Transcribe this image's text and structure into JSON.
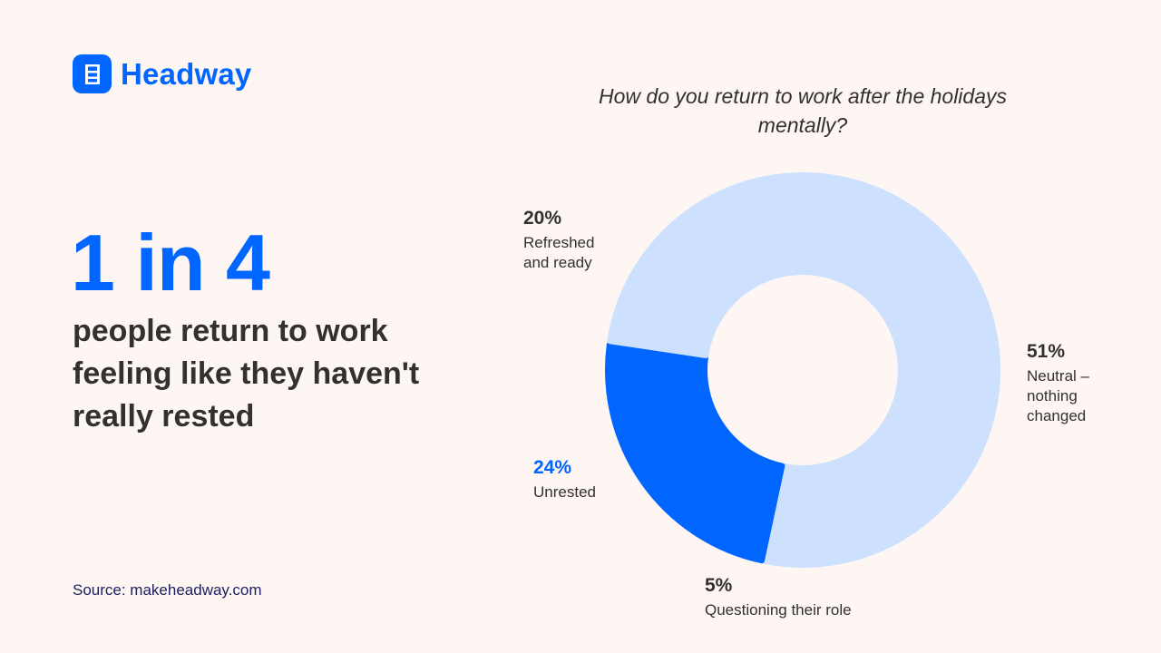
{
  "brand": {
    "name": "Headway",
    "icon": "ladder-icon",
    "color": "#0066ff"
  },
  "headline": {
    "stat": "1 in 4",
    "text": "people return to work feeling like they haven't really rested"
  },
  "source": "Source: makeheadway.com",
  "chart_data": {
    "type": "pie",
    "subtype": "donut",
    "title": "How do you return to work after the holidays mentally?",
    "categories": [
      "Neutral – nothing changed",
      "Questioning their role",
      "Unrested",
      "Refreshed and ready"
    ],
    "values": [
      51,
      5,
      24,
      20
    ],
    "unit": "%",
    "colors": [
      "#cde0fd",
      "#cde0fd",
      "#0066ff",
      "#cde0fd"
    ],
    "highlighted": "Unrested",
    "start_angle_deg": -10,
    "legend": "none (direct labels)"
  },
  "labels": [
    {
      "pct": "51%",
      "text": "Neutral – nothing changed"
    },
    {
      "pct": "5%",
      "text": "Questioning their role"
    },
    {
      "pct": "24%",
      "text": "Unrested"
    },
    {
      "pct": "20%",
      "text": "Refreshed and ready"
    }
  ]
}
